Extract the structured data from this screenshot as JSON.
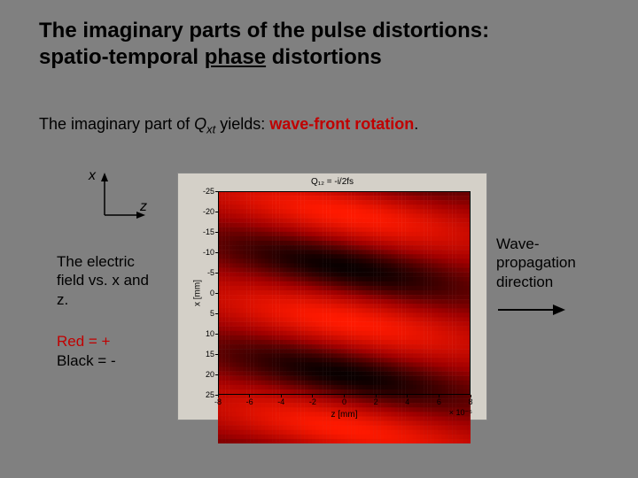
{
  "title_l1": "The imaginary parts of the pulse distortions:",
  "title_l2a": "spatio-temporal ",
  "title_l2b": "phase",
  "title_l2c": " distortions",
  "sub_a": "The imaginary part of ",
  "sub_q": "Q",
  "sub_xt": "xt",
  "sub_b": " yields: ",
  "sub_c": "wave-front rotation",
  "sub_d": ".",
  "axis_x": "x",
  "axis_z": "z",
  "caption1": "The electric field vs. x and z.",
  "legend_r": "Red = +",
  "legend_b": "Black = -",
  "caption2": "Wave-propagation direction",
  "plot": {
    "title": "Q₁₂ = -i/2fs",
    "ylabel": "x [mm]",
    "xlabel": "z [mm]",
    "xexp": "× 10⁻⁵",
    "yticks": [
      {
        "v": -25,
        "p": 0
      },
      {
        "v": -20,
        "p": 10
      },
      {
        "v": -15,
        "p": 20
      },
      {
        "v": -10,
        "p": 30
      },
      {
        "v": -5,
        "p": 40
      },
      {
        "v": 0,
        "p": 50
      },
      {
        "v": 5,
        "p": 60
      },
      {
        "v": 10,
        "p": 70
      },
      {
        "v": 15,
        "p": 80
      },
      {
        "v": 20,
        "p": 90
      },
      {
        "v": 25,
        "p": 100
      }
    ],
    "xticks": [
      {
        "v": -8,
        "p": 0
      },
      {
        "v": -6,
        "p": 12.5
      },
      {
        "v": -4,
        "p": 25
      },
      {
        "v": -2,
        "p": 37.5
      },
      {
        "v": 0,
        "p": 50
      },
      {
        "v": 2,
        "p": 62.5
      },
      {
        "v": 4,
        "p": 75
      },
      {
        "v": 6,
        "p": 87.5
      },
      {
        "v": 8,
        "p": 100
      }
    ],
    "heatmap": {
      "angle_deg": 100,
      "period_pct": 42,
      "colors": {
        "bright": "#ff1a00",
        "mid": "#a00000",
        "dark": "#0a0000"
      }
    }
  }
}
